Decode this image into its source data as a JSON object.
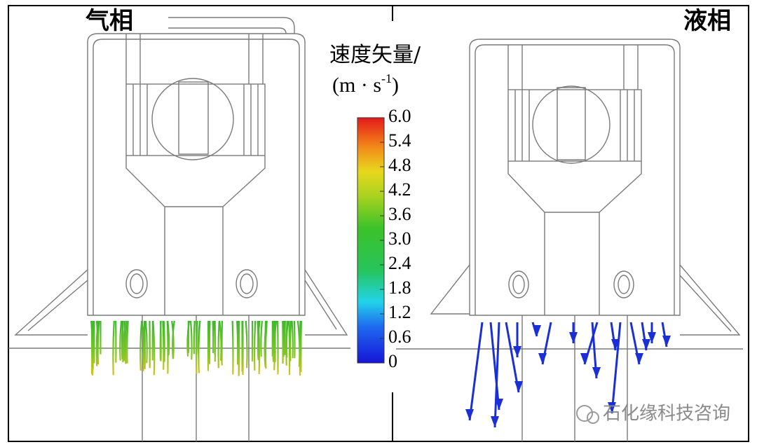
{
  "panels": {
    "left_label": "气相",
    "right_label": "液相"
  },
  "colorbar": {
    "title": "速度矢量/",
    "unit_prefix": "(m · s",
    "unit_exponent": "-1",
    "unit_suffix": ")",
    "ticks": [
      "6.0",
      "5.4",
      "4.8",
      "4.2",
      "3.6",
      "3.0",
      "2.4",
      "1.8",
      "1.2",
      "0.6",
      "0"
    ]
  },
  "watermark": "石化缘科技咨询"
}
